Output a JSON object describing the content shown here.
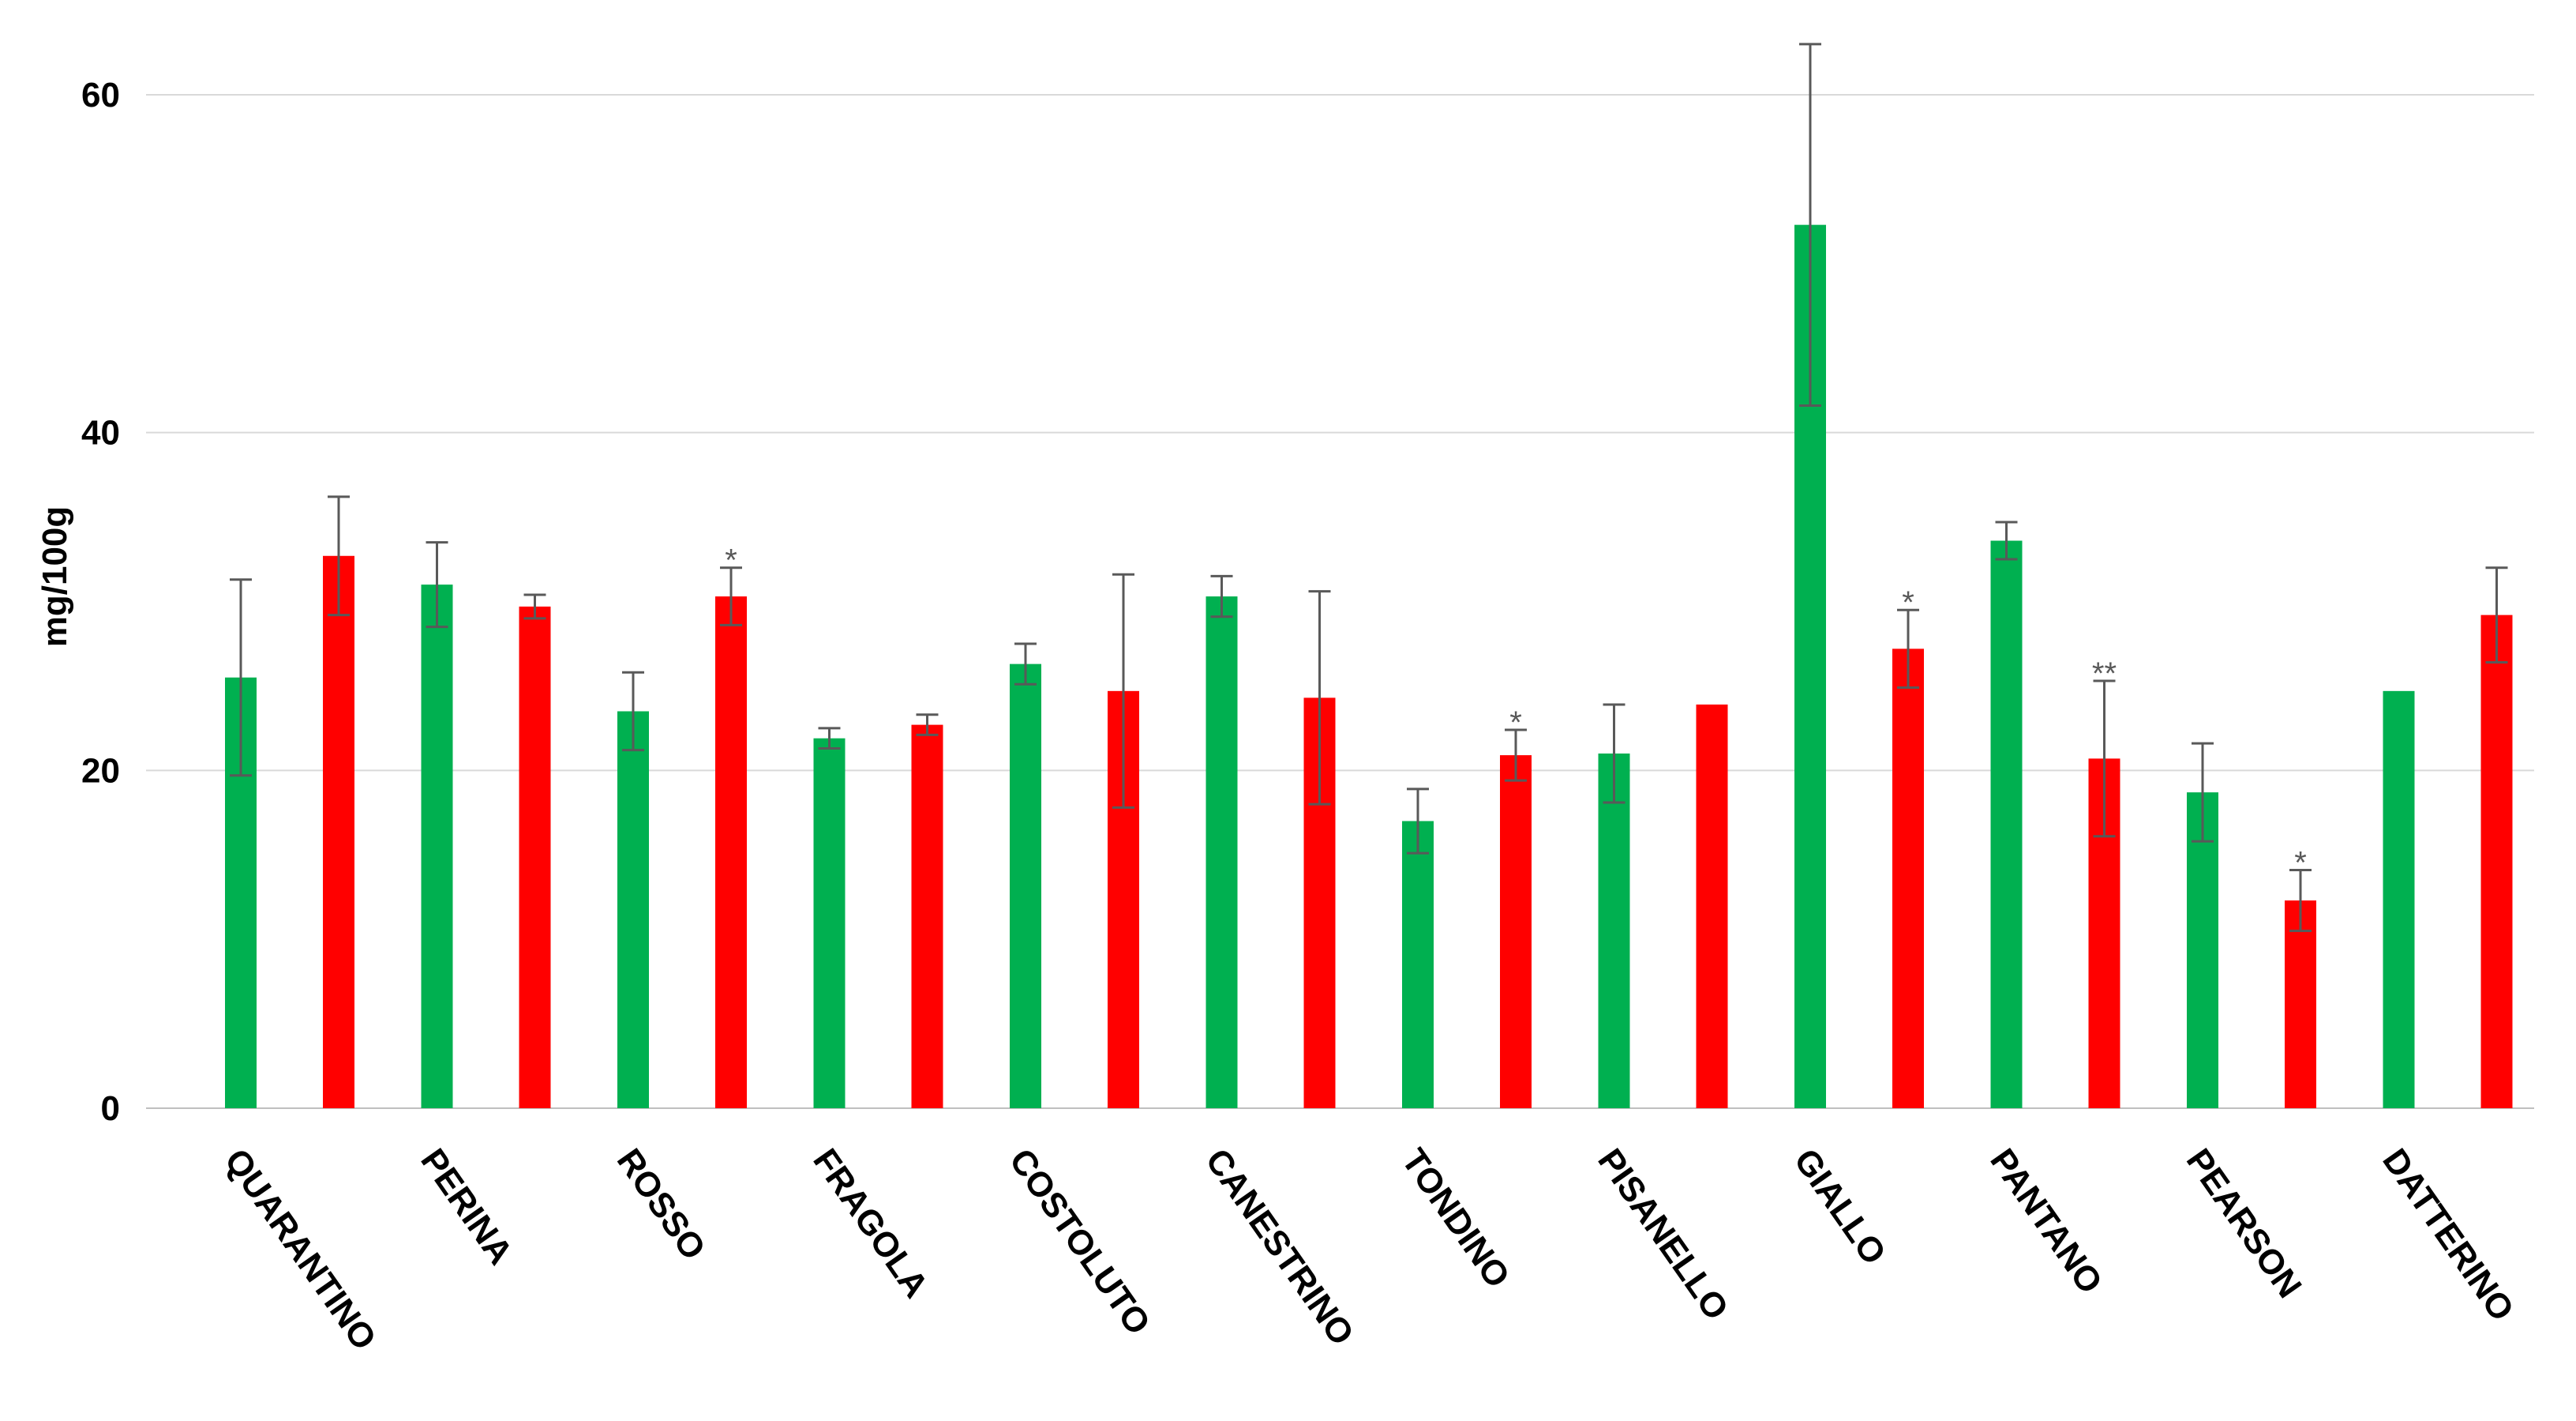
{
  "chart_data": {
    "type": "bar",
    "title": "",
    "xlabel": "",
    "ylabel": "mg/100g",
    "ylim": [
      0,
      60
    ],
    "yticks": [
      0,
      20,
      40,
      60
    ],
    "grid": true,
    "colors": {
      "series1": "#00b050",
      "series2": "#ff0000"
    },
    "categories": [
      "QUARANTINO",
      "PERINA",
      "ROSSO",
      "FRAGOLA",
      "COSTOLUTO",
      "CANESTRINO",
      "TONDINO",
      "PISANELLO",
      "GIALLO",
      "PANTANO",
      "PEARSON",
      "DATTERINO"
    ],
    "series": [
      {
        "color_key": "series1",
        "values": [
          25.5,
          31.0,
          23.5,
          21.9,
          26.3,
          30.3,
          17.0,
          21.0,
          52.3,
          33.6,
          18.7,
          24.7
        ],
        "errors": [
          5.8,
          2.5,
          2.3,
          0.6,
          1.2,
          1.2,
          1.9,
          2.9,
          10.7,
          1.1,
          2.9,
          0.0
        ],
        "annotations": [
          "",
          "",
          "",
          "",
          "",
          "",
          "",
          "",
          "",
          "",
          "",
          ""
        ]
      },
      {
        "color_key": "series2",
        "values": [
          32.7,
          29.7,
          30.3,
          22.7,
          24.7,
          24.3,
          20.9,
          23.9,
          27.2,
          20.7,
          12.3,
          29.2
        ],
        "errors": [
          3.5,
          0.7,
          1.7,
          0.6,
          6.9,
          6.3,
          1.5,
          0.0,
          2.3,
          4.6,
          1.8,
          2.8
        ],
        "annotations": [
          "",
          "",
          "*",
          "",
          "",
          "",
          "*",
          "",
          "*",
          "**",
          "*",
          ""
        ]
      }
    ]
  }
}
